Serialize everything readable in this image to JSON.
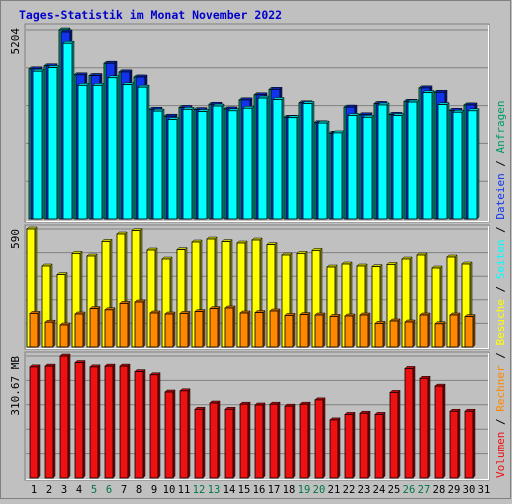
{
  "chart_data": {
    "type": "bar",
    "title": "Tages-Statistik im Monat November 2022",
    "categories": [
      "1",
      "2",
      "3",
      "4",
      "5",
      "6",
      "7",
      "8",
      "9",
      "10",
      "11",
      "12",
      "13",
      "14",
      "15",
      "16",
      "17",
      "18",
      "19",
      "20",
      "21",
      "22",
      "23",
      "24",
      "25",
      "26",
      "27",
      "28",
      "29",
      "30",
      "31"
    ],
    "weekend_days": [
      "5",
      "6",
      "12",
      "13",
      "19",
      "20",
      "26",
      "27"
    ],
    "grid": true,
    "legend": [
      {
        "name": "Volumen",
        "color": "#ee1111"
      },
      {
        "name": "Rechner",
        "color": "#ff8800"
      },
      {
        "name": "Besuche",
        "color": "#ffff00"
      },
      {
        "name": "Seiten",
        "color": "#00ffff"
      },
      {
        "name": "Dateien",
        "color": "#1133ee"
      },
      {
        "name": "Anfragen",
        "color": "#009966"
      }
    ],
    "legend_separator": " / ",
    "panels": [
      {
        "max_label": "5204",
        "ylim": [
          0,
          5204
        ],
        "series": [
          {
            "name": "Anfragen",
            "color": "#00b386",
            "values": [
              4135,
              4220,
              5204,
              3970,
              3950,
              4290,
              4050,
              3910,
              3020,
              2830,
              3070,
              3010,
              3160,
              3030,
              3280,
              3420,
              3570,
              2800,
              3200,
              2650,
              2360,
              3080,
              2870,
              3180,
              2880,
              3240,
              3610,
              3490,
              2990,
              3140,
              null
            ]
          },
          {
            "name": "Dateien",
            "color": "#1133ee",
            "values": [
              4135,
              4220,
              5150,
              3970,
              3950,
              4290,
              4050,
              3910,
              3020,
              2830,
              3070,
              3010,
              3160,
              3030,
              3280,
              3420,
              3570,
              2800,
              3200,
              2650,
              2360,
              3080,
              2870,
              3180,
              2880,
              3240,
              3610,
              3490,
              2990,
              3140,
              null
            ]
          },
          {
            "name": "Seiten",
            "color": "#00ffff",
            "values": [
              4070,
              4170,
              4840,
              3680,
              3680,
              3890,
              3700,
              3630,
              2970,
              2740,
              3020,
              2960,
              3110,
              2980,
              3050,
              3330,
              3290,
              2790,
              3180,
              2640,
              2370,
              2850,
              2800,
              3140,
              2850,
              3220,
              3480,
              3150,
              2940,
              2980,
              null
            ]
          }
        ]
      },
      {
        "max_label": "590",
        "ylim": [
          0,
          590
        ],
        "series": [
          {
            "name": "Besuche",
            "color": "#ffff00",
            "values": [
              590,
              405,
              362,
              468,
              455,
              528,
              565,
              582,
              485,
              440,
              487,
              525,
              540,
              527,
              520,
              535,
              512,
              460,
              468,
              483,
              400,
              415,
              405,
              402,
              413,
              440,
              460,
              395,
              450,
              415,
              null
            ]
          },
          {
            "name": "Rechner",
            "color": "#ff8800",
            "values": [
              168,
              124,
              110,
              165,
              192,
              186,
              218,
              225,
              170,
              165,
              168,
              177,
              192,
              195,
              170,
              172,
              180,
              158,
              162,
              160,
              153,
              155,
              160,
              118,
              130,
              125,
              160,
              116,
              160,
              152,
              null
            ]
          }
        ]
      },
      {
        "max_label": "310.67 MB",
        "ylim": [
          0,
          310.67
        ],
        "series": [
          {
            "name": "Volumen",
            "color": "#ee1111",
            "values": [
              283,
              285,
              310.67,
              294,
              283,
              285,
              285,
              271,
              263,
              219,
              222,
              175,
              191,
              175,
              188,
              186,
              188,
              183,
              188,
              199,
              148,
              162,
              165,
              162,
              218,
              279,
              254,
              234,
              170,
              170,
              null
            ]
          }
        ]
      }
    ]
  }
}
